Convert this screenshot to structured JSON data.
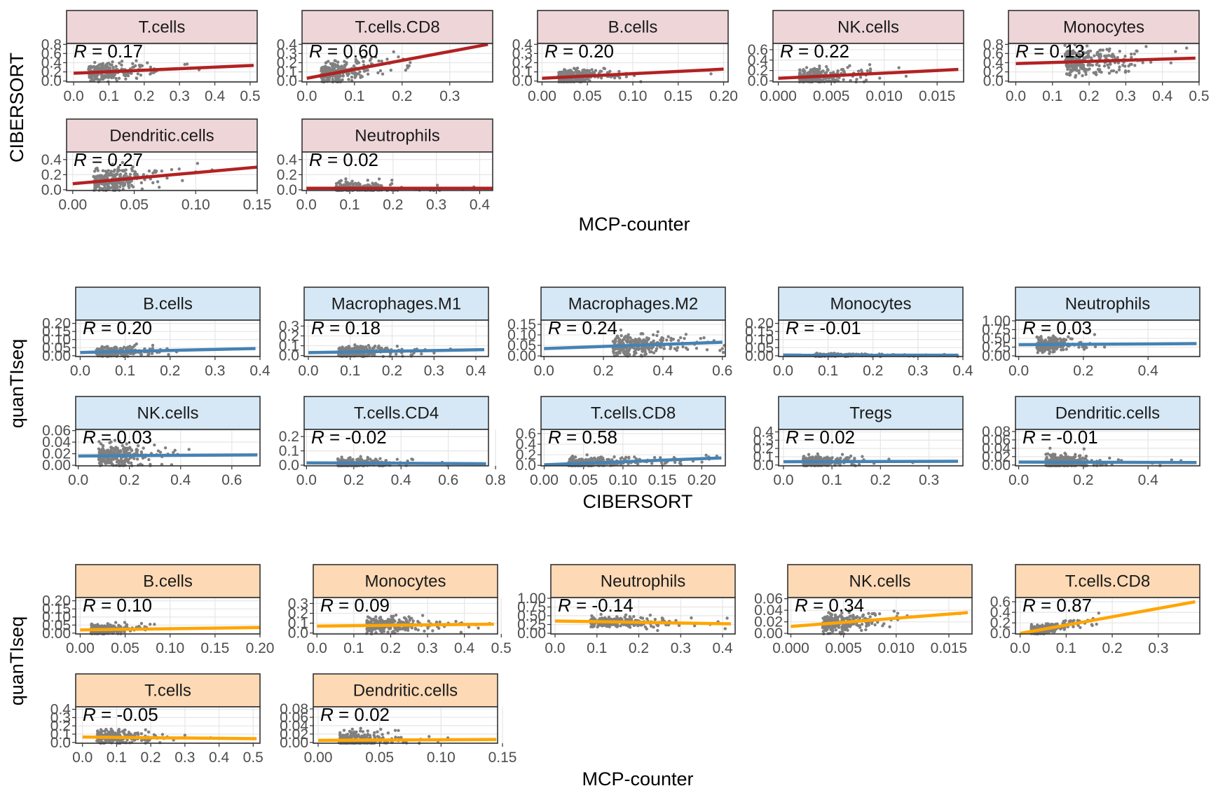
{
  "colors": {
    "sections": [
      "#B22222",
      "#4682B4",
      "#FFA500"
    ],
    "strips": [
      "#EED5D8",
      "#D6E8F5",
      "#FDD9B5"
    ],
    "points": "#808080"
  },
  "chart_data": [
    {
      "type": "scatter",
      "xlabel": "MCP-counter",
      "ylabel": "CIBERSORT",
      "panels": [
        {
          "name": "T.cells",
          "r_label": "R = 0.17",
          "xticks": [
            "0.0",
            "0.1",
            "0.2",
            "0.3",
            "0.4",
            "0.5"
          ],
          "yticks": [
            "0.0",
            "0.2",
            "0.4",
            "0.6",
            "0.8"
          ],
          "xlim": [
            -0.02,
            0.52
          ],
          "ylim": [
            -0.02,
            0.82
          ],
          "fit": [
            [
              0.0,
              0.17
            ],
            [
              0.51,
              0.34
            ]
          ],
          "cloud": {
            "x_mean": 0.07,
            "x_sd": 0.07,
            "y_mean": 0.2,
            "y_sd": 0.09
          }
        },
        {
          "name": "T.cells.CD8",
          "r_label": "R = 0.60",
          "xticks": [
            "0.0",
            "0.1",
            "0.2",
            "0.3"
          ],
          "yticks": [
            "0.0",
            "0.1",
            "0.2",
            "0.3",
            "0.4"
          ],
          "xlim": [
            -0.01,
            0.39
          ],
          "ylim": [
            -0.01,
            0.41
          ],
          "fit": [
            [
              0.0,
              0.03
            ],
            [
              0.38,
              0.4
            ]
          ],
          "cloud": {
            "x_mean": 0.05,
            "x_sd": 0.05,
            "y_mean": 0.07,
            "y_sd": 0.06
          }
        },
        {
          "name": "B.cells",
          "r_label": "R = 0.20",
          "xticks": [
            "0.00",
            "0.05",
            "0.10",
            "0.15",
            "0.20"
          ],
          "yticks": [
            "0.0",
            "0.1",
            "0.2",
            "0.3",
            "0.4"
          ],
          "xlim": [
            -0.005,
            0.205
          ],
          "ylim": [
            -0.01,
            0.41
          ],
          "fit": [
            [
              0.0,
              0.03
            ],
            [
              0.2,
              0.13
            ]
          ],
          "cloud": {
            "x_mean": 0.03,
            "x_sd": 0.03,
            "y_mean": 0.04,
            "y_sd": 0.04
          }
        },
        {
          "name": "NK.cells",
          "r_label": "R = 0.22",
          "xticks": [
            "0.000",
            "0.005",
            "0.010",
            "0.015"
          ],
          "yticks": [
            "0.0",
            "0.2",
            "0.4",
            "0.6"
          ],
          "xlim": [
            -0.0005,
            0.0175
          ],
          "ylim": [
            -0.02,
            0.72
          ],
          "fit": [
            [
              0.0,
              0.05
            ],
            [
              0.017,
              0.22
            ]
          ],
          "cloud": {
            "x_mean": 0.003,
            "x_sd": 0.0025,
            "y_mean": 0.08,
            "y_sd": 0.08
          }
        },
        {
          "name": "Monocytes",
          "r_label": "R = 0.13",
          "xticks": [
            "0.0",
            "0.1",
            "0.2",
            "0.3",
            "0.4",
            "0.5"
          ],
          "yticks": [
            "0.0",
            "0.2",
            "0.4",
            "0.6",
            "0.8"
          ],
          "xlim": [
            -0.02,
            0.5
          ],
          "ylim": [
            -0.02,
            0.82
          ],
          "fit": [
            [
              0.0,
              0.38
            ],
            [
              0.49,
              0.5
            ]
          ],
          "cloud": {
            "x_mean": 0.17,
            "x_sd": 0.09,
            "y_mean": 0.42,
            "y_sd": 0.16
          }
        },
        {
          "name": "Dendritic.cells",
          "r_label": "R = 0.27",
          "xticks": [
            "0.00",
            "0.05",
            "0.10",
            "0.15"
          ],
          "yticks": [
            "0.0",
            "0.2",
            "0.4"
          ],
          "xlim": [
            -0.005,
            0.15
          ],
          "ylim": [
            -0.01,
            0.5
          ],
          "fit": [
            [
              0.0,
              0.08
            ],
            [
              0.15,
              0.3
            ]
          ],
          "cloud": {
            "x_mean": 0.025,
            "x_sd": 0.02,
            "y_mean": 0.1,
            "y_sd": 0.07
          }
        },
        {
          "name": "Neutrophils",
          "r_label": "R = 0.02",
          "xticks": [
            "0.0",
            "0.1",
            "0.2",
            "0.3",
            "0.4"
          ],
          "yticks": [
            "0.0",
            "0.2",
            "0.4"
          ],
          "xlim": [
            -0.01,
            0.43
          ],
          "ylim": [
            -0.01,
            0.5
          ],
          "fit": [
            [
              0.0,
              0.02
            ],
            [
              0.43,
              0.02
            ]
          ],
          "cloud": {
            "x_mean": 0.1,
            "x_sd": 0.08,
            "y_mean": 0.03,
            "y_sd": 0.04
          }
        }
      ]
    },
    {
      "type": "scatter",
      "xlabel": "CIBERSORT",
      "ylabel": "quanTIseq",
      "panels": [
        {
          "name": "B.cells",
          "r_label": "R = 0.20",
          "xticks": [
            "0.0",
            "0.1",
            "0.2",
            "0.3",
            "0.4"
          ],
          "yticks": [
            "0.00",
            "0.05",
            "0.10",
            "0.15",
            "0.20"
          ],
          "xlim": [
            -0.01,
            0.4
          ],
          "ylim": [
            -0.005,
            0.22
          ],
          "fit": [
            [
              0.0,
              0.02
            ],
            [
              0.39,
              0.045
            ]
          ],
          "cloud": {
            "x_mean": 0.06,
            "x_sd": 0.06,
            "y_mean": 0.02,
            "y_sd": 0.015
          }
        },
        {
          "name": "Macrophages.M1",
          "r_label": "R = 0.18",
          "xticks": [
            "0.0",
            "0.1",
            "0.2",
            "0.3",
            "0.4"
          ],
          "yticks": [
            "0.0",
            "0.1",
            "0.2",
            "0.3"
          ],
          "xlim": [
            -0.01,
            0.43
          ],
          "ylim": [
            -0.01,
            0.36
          ],
          "fit": [
            [
              0.0,
              0.03
            ],
            [
              0.42,
              0.06
            ]
          ],
          "cloud": {
            "x_mean": 0.1,
            "x_sd": 0.07,
            "y_mean": 0.04,
            "y_sd": 0.03
          }
        },
        {
          "name": "Macrophages.M2",
          "r_label": "R = 0.24",
          "xticks": [
            "0.0",
            "0.2",
            "0.4",
            "0.6"
          ],
          "yticks": [
            "0.00",
            "0.05",
            "0.10",
            "0.15"
          ],
          "xlim": [
            -0.01,
            0.61
          ],
          "ylim": [
            -0.003,
            0.17
          ],
          "fit": [
            [
              0.0,
              0.035
            ],
            [
              0.6,
              0.065
            ]
          ],
          "cloud": {
            "x_mean": 0.28,
            "x_sd": 0.12,
            "y_mean": 0.05,
            "y_sd": 0.025
          }
        },
        {
          "name": "Monocytes",
          "r_label": "R = -0.01",
          "xticks": [
            "0.0",
            "0.1",
            "0.2",
            "0.3",
            "0.4"
          ],
          "yticks": [
            "0.00",
            "0.05",
            "0.10",
            "0.15",
            "0.20"
          ],
          "xlim": [
            -0.01,
            0.4
          ],
          "ylim": [
            -0.005,
            0.22
          ],
          "fit": [
            [
              0.0,
              0.004
            ],
            [
              0.39,
              0.003
            ]
          ],
          "cloud": {
            "x_mean": 0.1,
            "x_sd": 0.08,
            "y_mean": 0.003,
            "y_sd": 0.004
          }
        },
        {
          "name": "Neutrophils",
          "r_label": "R = 0.03",
          "xticks": [
            "0.0",
            "0.2",
            "0.4"
          ],
          "yticks": [
            "0.00",
            "0.25",
            "0.50",
            "0.75",
            "1.00"
          ],
          "xlim": [
            -0.01,
            0.56
          ],
          "ylim": [
            -0.02,
            1.02
          ],
          "fit": [
            [
              0.0,
              0.32
            ],
            [
              0.55,
              0.35
            ]
          ],
          "cloud": {
            "x_mean": 0.08,
            "x_sd": 0.06,
            "y_mean": 0.33,
            "y_sd": 0.1
          }
        },
        {
          "name": "NK.cells",
          "r_label": "R = 0.03",
          "xticks": [
            "0.0",
            "0.2",
            "0.4",
            "0.6"
          ],
          "yticks": [
            "0.00",
            "0.02",
            "0.04",
            "0.06"
          ],
          "xlim": [
            -0.01,
            0.71
          ],
          "ylim": [
            -0.001,
            0.062
          ],
          "fit": [
            [
              0.0,
              0.016
            ],
            [
              0.7,
              0.018
            ]
          ],
          "cloud": {
            "x_mean": 0.12,
            "x_sd": 0.1,
            "y_mean": 0.018,
            "y_sd": 0.01
          }
        },
        {
          "name": "T.cells.CD4",
          "r_label": "R = -0.02",
          "xticks": [
            "0.0",
            "0.2",
            "0.4",
            "0.6",
            "0.8"
          ],
          "yticks": [
            "0.0",
            "0.1",
            "0.2"
          ],
          "xlim": [
            -0.01,
            0.77
          ],
          "ylim": [
            -0.005,
            0.25
          ],
          "fit": [
            [
              0.0,
              0.016
            ],
            [
              0.76,
              0.01
            ]
          ],
          "cloud": {
            "x_mean": 0.18,
            "x_sd": 0.12,
            "y_mean": 0.02,
            "y_sd": 0.02
          }
        },
        {
          "name": "T.cells.CD8",
          "r_label": "R = 0.58",
          "xticks": [
            "0.00",
            "0.05",
            "0.10",
            "0.15",
            "0.20"
          ],
          "yticks": [
            "0.0",
            "0.2",
            "0.4",
            "0.6"
          ],
          "xlim": [
            -0.004,
            0.23
          ],
          "ylim": [
            -0.01,
            0.68
          ],
          "fit": [
            [
              0.0,
              0.01
            ],
            [
              0.225,
              0.14
            ]
          ],
          "cloud": {
            "x_mean": 0.05,
            "x_sd": 0.05,
            "y_mean": 0.04,
            "y_sd": 0.05
          }
        },
        {
          "name": "Tregs",
          "r_label": "R = 0.02",
          "xticks": [
            "0.0",
            "0.1",
            "0.2",
            "0.3"
          ],
          "yticks": [
            "0.0",
            "0.1",
            "0.2",
            "0.3",
            "0.4"
          ],
          "xlim": [
            -0.01,
            0.37
          ],
          "ylim": [
            -0.01,
            0.43
          ],
          "fit": [
            [
              0.0,
              0.04
            ],
            [
              0.36,
              0.045
            ]
          ],
          "cloud": {
            "x_mean": 0.06,
            "x_sd": 0.05,
            "y_mean": 0.04,
            "y_sd": 0.03
          }
        },
        {
          "name": "Dendritic.cells",
          "r_label": "R = -0.01",
          "xticks": [
            "0.0",
            "0.2",
            "0.4"
          ],
          "yticks": [
            "0.00",
            "0.02",
            "0.04",
            "0.06",
            "0.08"
          ],
          "xlim": [
            -0.01,
            0.56
          ],
          "ylim": [
            -0.002,
            0.085
          ],
          "fit": [
            [
              0.0,
              0.007
            ],
            [
              0.55,
              0.006
            ]
          ],
          "cloud": {
            "x_mean": 0.12,
            "x_sd": 0.09,
            "y_mean": 0.01,
            "y_sd": 0.01
          }
        }
      ]
    },
    {
      "type": "scatter",
      "xlabel": "MCP-counter",
      "ylabel": "quanTIseq",
      "panels": [
        {
          "name": "B.cells",
          "r_label": "R = 0.10",
          "xticks": [
            "0.00",
            "0.05",
            "0.10",
            "0.15",
            "0.20"
          ],
          "yticks": [
            "0.00",
            "0.05",
            "0.10",
            "0.15",
            "0.20"
          ],
          "xlim": [
            -0.005,
            0.2
          ],
          "ylim": [
            -0.005,
            0.22
          ],
          "fit": [
            [
              0.0,
              0.02
            ],
            [
              0.2,
              0.035
            ]
          ],
          "cloud": {
            "x_mean": 0.02,
            "x_sd": 0.02,
            "y_mean": 0.02,
            "y_sd": 0.015
          }
        },
        {
          "name": "Monocytes",
          "r_label": "R = 0.09",
          "xticks": [
            "0.0",
            "0.1",
            "0.2",
            "0.3",
            "0.4",
            "0.5"
          ],
          "yticks": [
            "0.0",
            "0.1",
            "0.2",
            "0.3"
          ],
          "xlim": [
            -0.01,
            0.49
          ],
          "ylim": [
            -0.01,
            0.36
          ],
          "fit": [
            [
              0.0,
              0.07
            ],
            [
              0.48,
              0.09
            ]
          ],
          "cloud": {
            "x_mean": 0.17,
            "x_sd": 0.09,
            "y_mean": 0.08,
            "y_sd": 0.04
          }
        },
        {
          "name": "Neutrophils",
          "r_label": "R = -0.14",
          "xticks": [
            "0.0",
            "0.1",
            "0.2",
            "0.3",
            "0.4"
          ],
          "yticks": [
            "0.00",
            "0.25",
            "0.50",
            "0.75",
            "1.00"
          ],
          "xlim": [
            -0.01,
            0.43
          ],
          "ylim": [
            -0.02,
            1.02
          ],
          "fit": [
            [
              0.0,
              0.35
            ],
            [
              0.42,
              0.27
            ]
          ],
          "cloud": {
            "x_mean": 0.12,
            "x_sd": 0.09,
            "y_mean": 0.33,
            "y_sd": 0.08
          }
        },
        {
          "name": "NK.cells",
          "r_label": "R = 0.34",
          "xticks": [
            "0.000",
            "0.005",
            "0.010",
            "0.015"
          ],
          "yticks": [
            "0.00",
            "0.02",
            "0.04",
            "0.06"
          ],
          "xlim": [
            -0.0003,
            0.0172
          ],
          "ylim": [
            -0.001,
            0.062
          ],
          "fit": [
            [
              0.0,
              0.012
            ],
            [
              0.0168,
              0.036
            ]
          ],
          "cloud": {
            "x_mean": 0.004,
            "x_sd": 0.0025,
            "y_mean": 0.017,
            "y_sd": 0.008
          }
        },
        {
          "name": "T.cells.CD8",
          "r_label": "R = 0.87",
          "xticks": [
            "0.0",
            "0.1",
            "0.2",
            "0.3"
          ],
          "yticks": [
            "0.0",
            "0.2",
            "0.4",
            "0.6"
          ],
          "xlim": [
            -0.01,
            0.39
          ],
          "ylim": [
            -0.01,
            0.68
          ],
          "fit": [
            [
              0.0,
              0.0
            ],
            [
              0.38,
              0.6
            ]
          ],
          "cloud": {
            "x_mean": 0.04,
            "x_sd": 0.04,
            "y_mean": 0.05,
            "y_sd": 0.05
          }
        },
        {
          "name": "T.cells",
          "r_label": "R = -0.05",
          "xticks": [
            "0.0",
            "0.1",
            "0.2",
            "0.3",
            "0.4",
            "0.5"
          ],
          "yticks": [
            "0.0",
            "0.1",
            "0.2",
            "0.3",
            "0.4"
          ],
          "xlim": [
            -0.02,
            0.52
          ],
          "ylim": [
            -0.01,
            0.43
          ],
          "fit": [
            [
              0.0,
              0.065
            ],
            [
              0.51,
              0.045
            ]
          ],
          "cloud": {
            "x_mean": 0.07,
            "x_sd": 0.07,
            "y_mean": 0.05,
            "y_sd": 0.04
          }
        },
        {
          "name": "Dendritic.cells",
          "r_label": "R = 0.02",
          "xticks": [
            "0.00",
            "0.05",
            "0.10",
            "0.15"
          ],
          "yticks": [
            "0.00",
            "0.02",
            "0.04",
            "0.06",
            "0.08"
          ],
          "xlim": [
            -0.004,
            0.146
          ],
          "ylim": [
            -0.002,
            0.085
          ],
          "fit": [
            [
              0.0,
              0.005
            ],
            [
              0.145,
              0.007
            ]
          ],
          "cloud": {
            "x_mean": 0.025,
            "x_sd": 0.02,
            "y_mean": 0.012,
            "y_sd": 0.012
          }
        }
      ]
    }
  ]
}
